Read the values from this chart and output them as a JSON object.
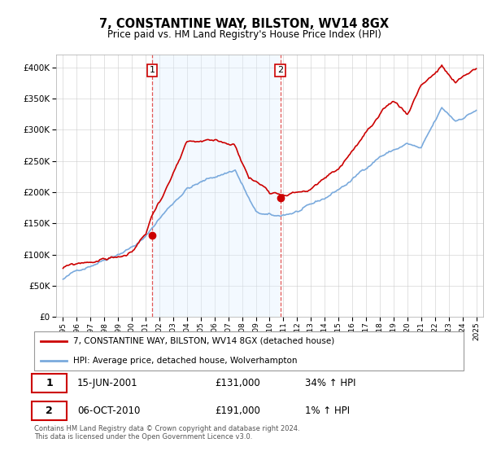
{
  "title": "7, CONSTANTINE WAY, BILSTON, WV14 8GX",
  "subtitle": "Price paid vs. HM Land Registry's House Price Index (HPI)",
  "legend_line1": "7, CONSTANTINE WAY, BILSTON, WV14 8GX (detached house)",
  "legend_line2": "HPI: Average price, detached house, Wolverhampton",
  "footnote": "Contains HM Land Registry data © Crown copyright and database right 2024.\nThis data is licensed under the Open Government Licence v3.0.",
  "sale1_date": "15-JUN-2001",
  "sale1_price": "£131,000",
  "sale1_hpi": "34% ↑ HPI",
  "sale2_date": "06-OCT-2010",
  "sale2_price": "£191,000",
  "sale2_hpi": "1% ↑ HPI",
  "red_color": "#cc0000",
  "blue_color": "#7aaadd",
  "fill_color": "#ddeeff",
  "vline_color": "#dd4444",
  "bg_color": "#ffffff",
  "grid_color": "#cccccc",
  "ylim": [
    0,
    420000
  ],
  "sale1_year": 2001.46,
  "sale2_year": 2010.77
}
